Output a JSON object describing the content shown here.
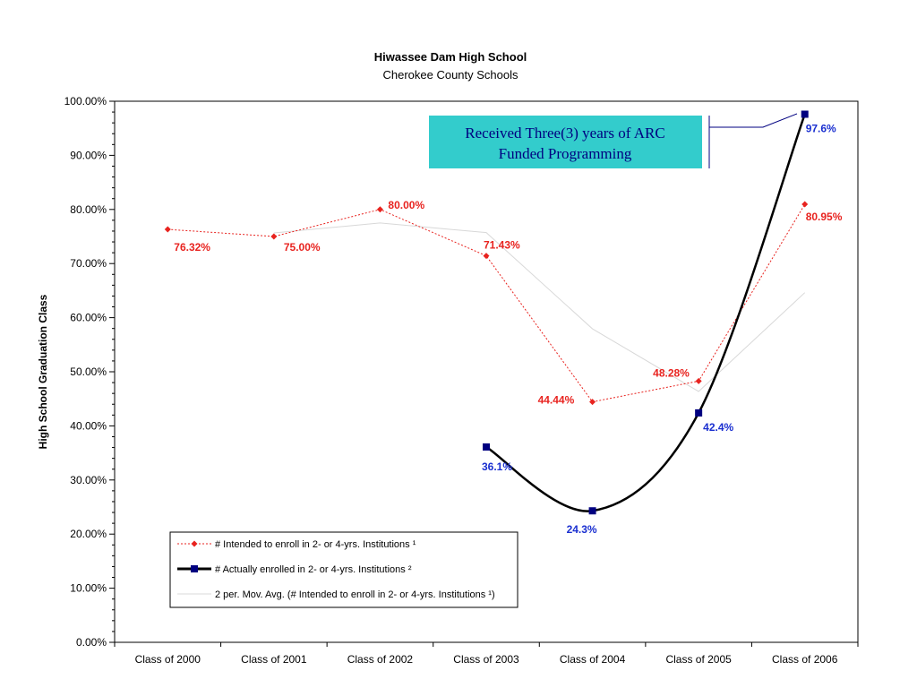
{
  "chart_data": {
    "type": "line",
    "title": "Hiwassee Dam High School",
    "subtitle": "Cherokee County Schools",
    "xlabel": "",
    "ylabel": "High School Graduation Class",
    "ylim": [
      0,
      100
    ],
    "y_ticks": [
      "0.00%",
      "10.00%",
      "20.00%",
      "30.00%",
      "40.00%",
      "50.00%",
      "60.00%",
      "70.00%",
      "80.00%",
      "90.00%",
      "100.00%"
    ],
    "categories": [
      "Class of 2000",
      "Class of 2001",
      "Class of 2002",
      "Class of 2003",
      "Class of 2004",
      "Class of 2005",
      "Class of 2006"
    ],
    "legend_position": "bottom-left",
    "grid": false,
    "series": [
      {
        "name": "# Intended to enroll in 2- or 4-yrs. Institutions ¹",
        "style": "dotted-diamond",
        "color": "#e8231f",
        "values": [
          76.32,
          75.0,
          80.0,
          71.43,
          44.44,
          48.28,
          80.95
        ],
        "labels": [
          "76.32%",
          "75.00%",
          "80.00%",
          "71.43%",
          "44.44%",
          "48.28%",
          "80.95%"
        ]
      },
      {
        "name": "# Actually enrolled in 2- or 4-yrs. Institutions ²",
        "style": "thick-square-smooth",
        "color": "#000000",
        "marker_color": "#000080",
        "label_color": "#1a2fd0",
        "values": [
          null,
          null,
          null,
          36.1,
          24.3,
          42.4,
          97.6
        ],
        "labels": [
          "",
          "",
          "",
          "36.1%",
          "24.3%",
          "42.4%",
          "97.6%"
        ]
      },
      {
        "name": "2 per. Mov. Avg. (# Intended to enroll in 2- or 4-yrs. Institutions ¹)",
        "style": "thin-line",
        "color": "#d8d8d8",
        "values": [
          null,
          75.66,
          77.5,
          75.72,
          57.94,
          46.36,
          64.62
        ]
      }
    ],
    "annotation": {
      "text_lines": [
        "Received Three(3) years of ARC",
        "Funded Programming"
      ],
      "background": "#33cccc",
      "text_color": "#000080"
    }
  }
}
